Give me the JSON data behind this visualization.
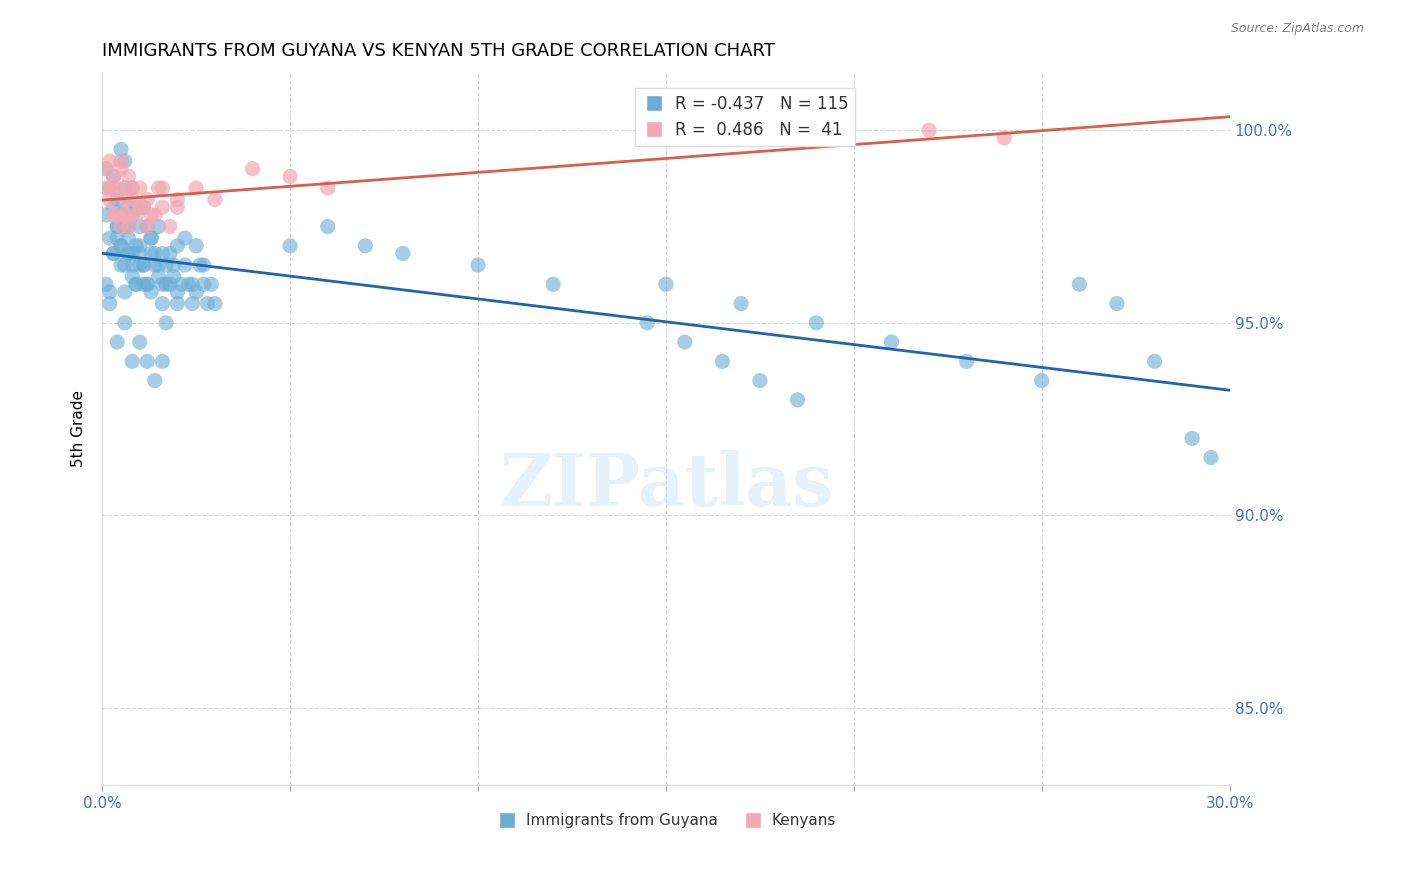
{
  "title": "IMMIGRANTS FROM GUYANA VS KENYAN 5TH GRADE CORRELATION CHART",
  "source": "Source: ZipAtlas.com",
  "xlabel": "",
  "ylabel": "5th Grade",
  "xlim": [
    0.0,
    0.3
  ],
  "ylim": [
    0.83,
    1.015
  ],
  "yticks": [
    0.85,
    0.9,
    0.95,
    1.0
  ],
  "ytick_labels": [
    "85.0%",
    "90.0%",
    "95.0%",
    "100.0%"
  ],
  "xticks": [
    0.0,
    0.05,
    0.1,
    0.15,
    0.2,
    0.25,
    0.3
  ],
  "xtick_labels": [
    "0.0%",
    "",
    "",
    "",
    "",
    "",
    "30.0%"
  ],
  "legend_R1": "-0.437",
  "legend_N1": "115",
  "legend_R2": "0.486",
  "legend_N2": "41",
  "blue_color": "#6aaed6",
  "pink_color": "#f4a7b5",
  "blue_line_color": "#2166ac",
  "pink_line_color": "#d6604d",
  "axis_color": "#4472c4",
  "watermark": "ZIPatlas",
  "blue_scatter_x": [
    0.001,
    0.002,
    0.003,
    0.003,
    0.004,
    0.004,
    0.005,
    0.005,
    0.005,
    0.006,
    0.006,
    0.006,
    0.007,
    0.007,
    0.007,
    0.008,
    0.008,
    0.008,
    0.009,
    0.009,
    0.01,
    0.01,
    0.011,
    0.011,
    0.012,
    0.012,
    0.013,
    0.013,
    0.014,
    0.015,
    0.015,
    0.016,
    0.016,
    0.017,
    0.017,
    0.018,
    0.019,
    0.02,
    0.02,
    0.021,
    0.022,
    0.023,
    0.024,
    0.025,
    0.025,
    0.026,
    0.027,
    0.028,
    0.029,
    0.03,
    0.001,
    0.002,
    0.003,
    0.004,
    0.005,
    0.006,
    0.007,
    0.008,
    0.009,
    0.01,
    0.011,
    0.012,
    0.013,
    0.014,
    0.016,
    0.018,
    0.02,
    0.022,
    0.024,
    0.027,
    0.001,
    0.002,
    0.003,
    0.004,
    0.005,
    0.006,
    0.007,
    0.008,
    0.009,
    0.01,
    0.011,
    0.013,
    0.015,
    0.017,
    0.019,
    0.002,
    0.004,
    0.006,
    0.008,
    0.01,
    0.012,
    0.014,
    0.016,
    0.05,
    0.06,
    0.07,
    0.08,
    0.1,
    0.12,
    0.15,
    0.17,
    0.19,
    0.21,
    0.23,
    0.25,
    0.26,
    0.27,
    0.28,
    0.29,
    0.295,
    0.145,
    0.155,
    0.165,
    0.175,
    0.185
  ],
  "blue_scatter_y": [
    0.99,
    0.985,
    0.98,
    0.988,
    0.975,
    0.982,
    0.995,
    0.978,
    0.97,
    0.985,
    0.992,
    0.975,
    0.98,
    0.972,
    0.968,
    0.985,
    0.978,
    0.965,
    0.98,
    0.97,
    0.975,
    0.968,
    0.98,
    0.965,
    0.975,
    0.96,
    0.972,
    0.958,
    0.968,
    0.975,
    0.962,
    0.968,
    0.955,
    0.965,
    0.95,
    0.96,
    0.965,
    0.97,
    0.955,
    0.96,
    0.965,
    0.96,
    0.955,
    0.97,
    0.958,
    0.965,
    0.96,
    0.955,
    0.96,
    0.955,
    0.978,
    0.972,
    0.968,
    0.975,
    0.97,
    0.965,
    0.975,
    0.968,
    0.96,
    0.97,
    0.965,
    0.96,
    0.972,
    0.965,
    0.96,
    0.968,
    0.958,
    0.972,
    0.96,
    0.965,
    0.96,
    0.958,
    0.968,
    0.972,
    0.965,
    0.958,
    0.968,
    0.962,
    0.96,
    0.965,
    0.96,
    0.968,
    0.965,
    0.96,
    0.962,
    0.955,
    0.945,
    0.95,
    0.94,
    0.945,
    0.94,
    0.935,
    0.94,
    0.97,
    0.975,
    0.97,
    0.968,
    0.965,
    0.96,
    0.96,
    0.955,
    0.95,
    0.945,
    0.94,
    0.935,
    0.96,
    0.955,
    0.94,
    0.92,
    0.915,
    0.95,
    0.945,
    0.94,
    0.935,
    0.93
  ],
  "pink_scatter_x": [
    0.001,
    0.002,
    0.003,
    0.003,
    0.004,
    0.005,
    0.005,
    0.006,
    0.006,
    0.007,
    0.007,
    0.008,
    0.009,
    0.01,
    0.011,
    0.012,
    0.013,
    0.015,
    0.016,
    0.018,
    0.02,
    0.001,
    0.002,
    0.003,
    0.004,
    0.005,
    0.006,
    0.007,
    0.008,
    0.01,
    0.012,
    0.014,
    0.016,
    0.02,
    0.025,
    0.03,
    0.04,
    0.05,
    0.06,
    0.22,
    0.24
  ],
  "pink_scatter_y": [
    0.985,
    0.992,
    0.988,
    0.978,
    0.985,
    0.992,
    0.975,
    0.985,
    0.978,
    0.988,
    0.975,
    0.982,
    0.978,
    0.985,
    0.98,
    0.975,
    0.978,
    0.985,
    0.98,
    0.975,
    0.982,
    0.99,
    0.982,
    0.985,
    0.978,
    0.99,
    0.982,
    0.978,
    0.985,
    0.98,
    0.982,
    0.978,
    0.985,
    0.98,
    0.985,
    0.982,
    0.99,
    0.988,
    0.985,
    1.0,
    0.998
  ]
}
